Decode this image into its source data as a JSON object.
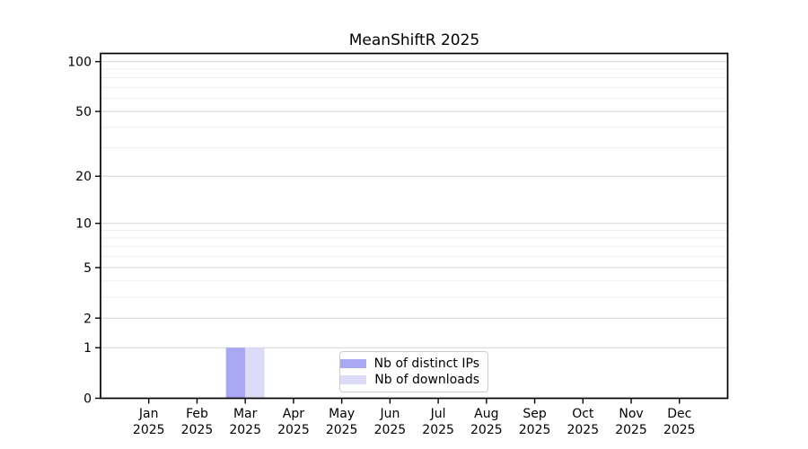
{
  "chart_data": {
    "type": "bar",
    "title": "MeanShiftR 2025",
    "categories": [
      "Jan",
      "Feb",
      "Mar",
      "Apr",
      "May",
      "Jun",
      "Jul",
      "Aug",
      "Sep",
      "Oct",
      "Nov",
      "Dec"
    ],
    "category_sublabel": "2025",
    "series": [
      {
        "name": "Nb of distinct IPs",
        "color": "#a8a8f2",
        "values": [
          0,
          0,
          1,
          0,
          0,
          0,
          0,
          0,
          0,
          0,
          0,
          0
        ]
      },
      {
        "name": "Nb of downloads",
        "color": "#dcdcf8",
        "values": [
          0,
          0,
          1,
          0,
          0,
          0,
          0,
          0,
          0,
          0,
          0,
          0
        ]
      }
    ],
    "xlabel": "",
    "ylabel": "",
    "yscale": "log1p",
    "ylim": [
      0,
      112
    ],
    "yticks": [
      0,
      1,
      2,
      5,
      10,
      20,
      50,
      100
    ],
    "yticks_minor": [
      3,
      4,
      6,
      7,
      8,
      9,
      30,
      40,
      60,
      70,
      80,
      90
    ],
    "grid": "horizontal",
    "legend_position": "bottom-center",
    "colors": {
      "axis": "#000000",
      "grid_major": "#d4d4d4",
      "grid_minor": "#ededed",
      "legend_border": "#cccccc",
      "background": "#ffffff"
    }
  }
}
